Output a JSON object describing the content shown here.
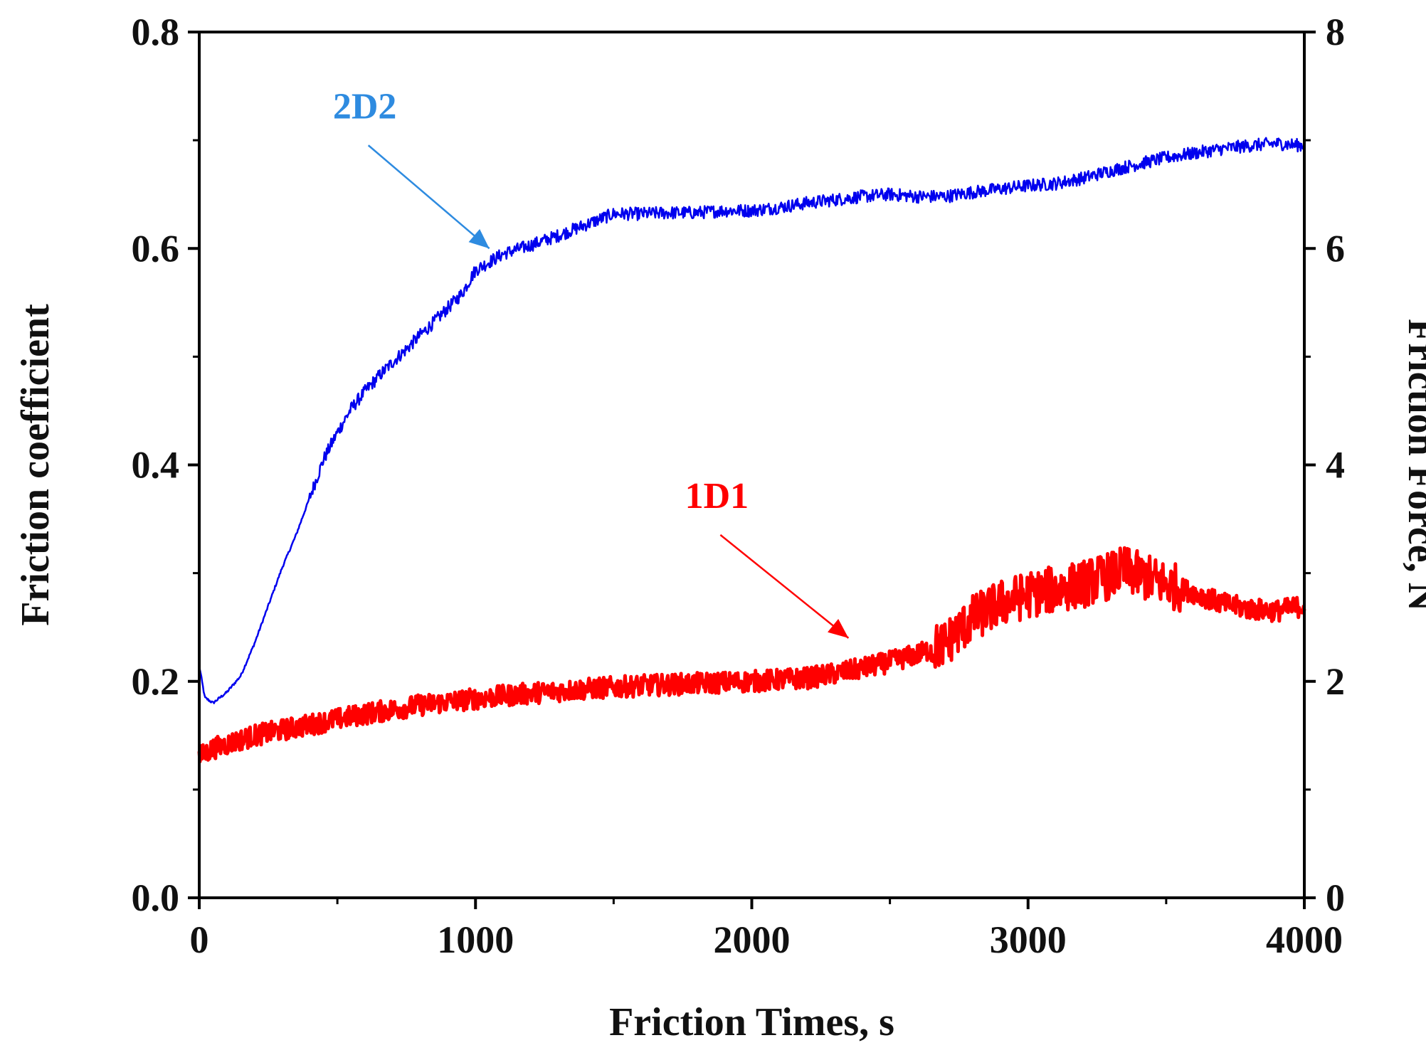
{
  "chart_data": {
    "type": "line",
    "title": "",
    "xlabel": "Friction Times, s",
    "ylabel": "Friction coefficient",
    "y2label": "Friction Force, N",
    "xlim": [
      0,
      4000
    ],
    "ylim": [
      0.0,
      0.8
    ],
    "y2lim": [
      0,
      8
    ],
    "x_ticks": [
      "0",
      "1000",
      "2000",
      "3000",
      "4000"
    ],
    "y_ticks": [
      "0.0",
      "0.2",
      "0.4",
      "0.6",
      "0.8"
    ],
    "y2_ticks": [
      "0",
      "2",
      "4",
      "6",
      "8"
    ],
    "grid": false,
    "series": [
      {
        "name": "2D2",
        "color": "#0000ee",
        "x": [
          0,
          20,
          50,
          100,
          150,
          200,
          250,
          300,
          350,
          400,
          450,
          500,
          550,
          600,
          650,
          700,
          750,
          800,
          850,
          900,
          950,
          1000,
          1100,
          1200,
          1300,
          1400,
          1500,
          1600,
          1700,
          1800,
          1900,
          2000,
          2100,
          2200,
          2300,
          2400,
          2500,
          2600,
          2700,
          2800,
          2900,
          3000,
          3100,
          3200,
          3300,
          3400,
          3500,
          3600,
          3700,
          3800,
          3900,
          4000
        ],
        "y": [
          0.215,
          0.185,
          0.18,
          0.19,
          0.205,
          0.235,
          0.27,
          0.305,
          0.335,
          0.37,
          0.405,
          0.43,
          0.452,
          0.468,
          0.482,
          0.495,
          0.507,
          0.52,
          0.532,
          0.545,
          0.558,
          0.58,
          0.595,
          0.603,
          0.612,
          0.622,
          0.632,
          0.632,
          0.633,
          0.633,
          0.635,
          0.635,
          0.638,
          0.642,
          0.645,
          0.648,
          0.65,
          0.648,
          0.648,
          0.652,
          0.655,
          0.658,
          0.66,
          0.665,
          0.672,
          0.678,
          0.684,
          0.688,
          0.692,
          0.695,
          0.697,
          0.695
        ],
        "noise": 0.006
      },
      {
        "name": "1D1",
        "color": "#ff0000",
        "x": [
          0,
          50,
          100,
          200,
          300,
          400,
          500,
          600,
          700,
          800,
          900,
          1000,
          1200,
          1400,
          1600,
          1800,
          2000,
          2200,
          2300,
          2400,
          2500,
          2600,
          2700,
          2800,
          2900,
          3000,
          3100,
          3200,
          3300,
          3350,
          3400,
          3500,
          3600,
          3700,
          3800,
          3900,
          4000
        ],
        "y": [
          0.13,
          0.138,
          0.142,
          0.15,
          0.155,
          0.16,
          0.165,
          0.17,
          0.174,
          0.178,
          0.181,
          0.184,
          0.189,
          0.193,
          0.196,
          0.198,
          0.2,
          0.203,
          0.207,
          0.212,
          0.218,
          0.225,
          0.235,
          0.258,
          0.272,
          0.28,
          0.285,
          0.29,
          0.298,
          0.303,
          0.298,
          0.29,
          0.282,
          0.272,
          0.267,
          0.265,
          0.27
        ],
        "noise": 0.01
      }
    ],
    "annotations": [
      {
        "text": "2D2",
        "color": "#2e8be0",
        "target_x": 1050,
        "target_y": 0.6
      },
      {
        "text": "1D1",
        "color": "#ff0000",
        "target_x": 2350,
        "target_y": 0.24
      }
    ]
  }
}
